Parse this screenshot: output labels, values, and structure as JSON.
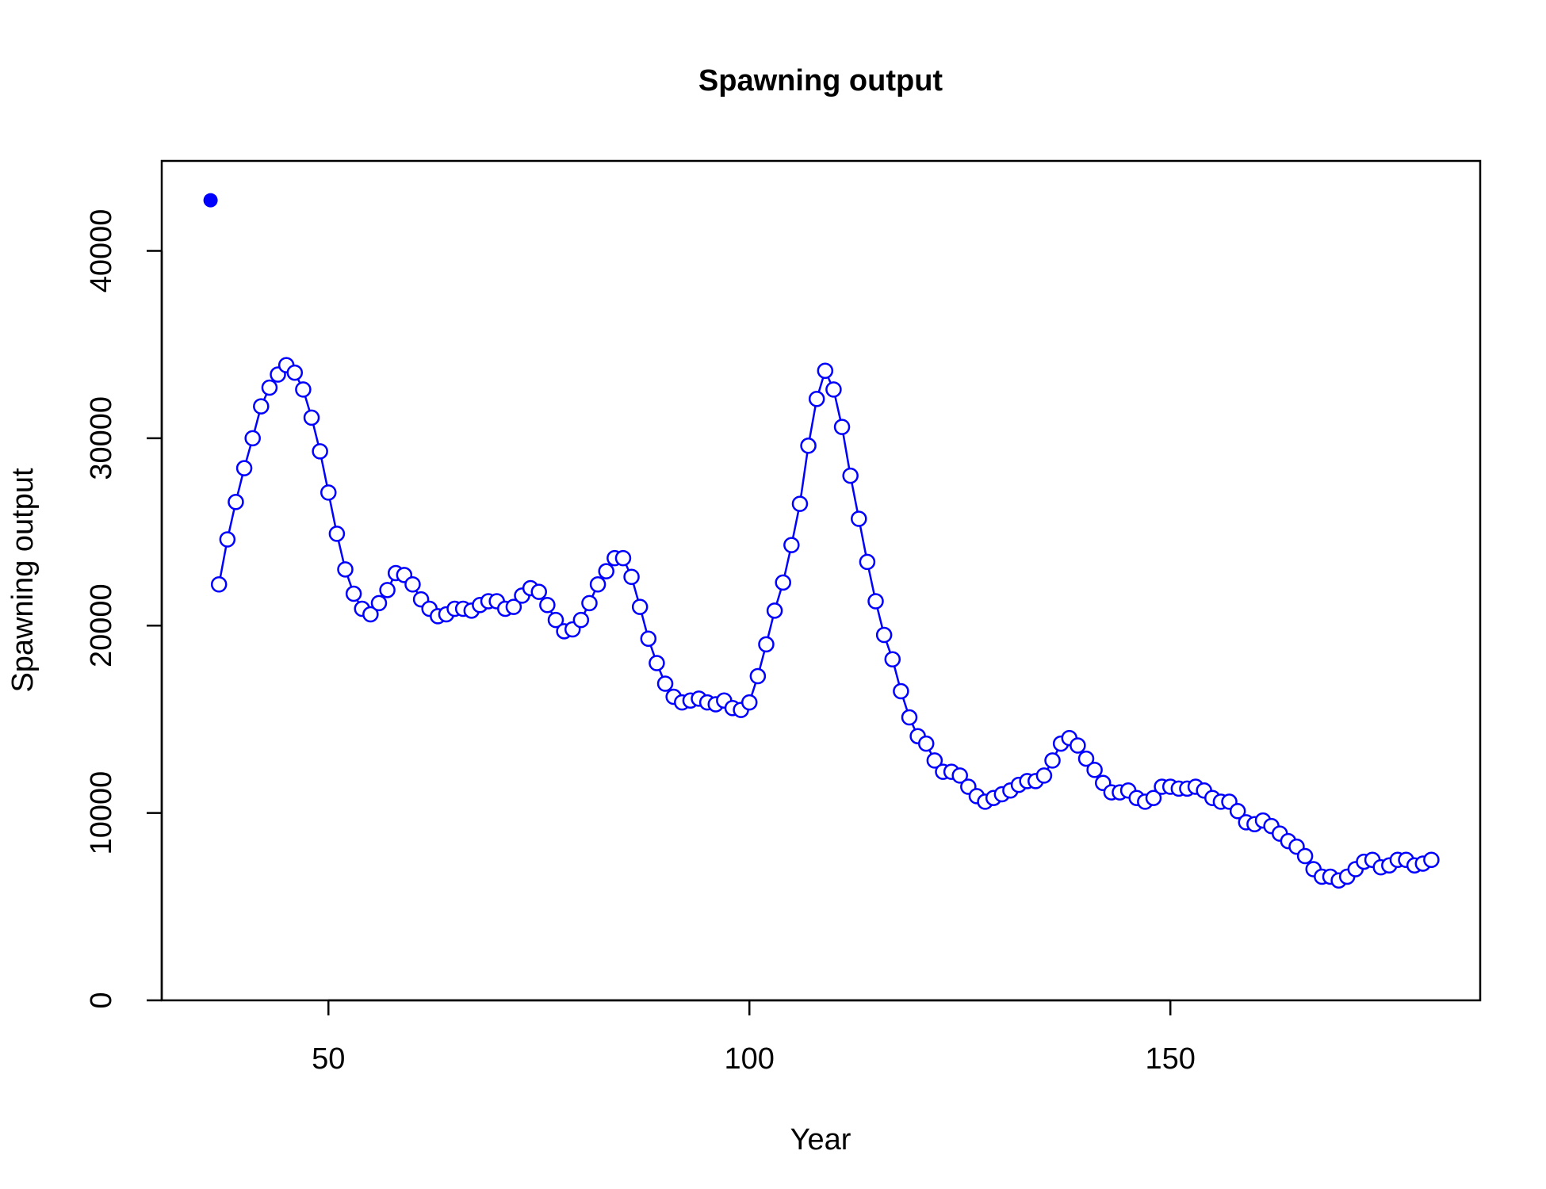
{
  "chart_data": {
    "type": "line",
    "title": "Spawning output",
    "x_label": "Year",
    "y_label": "Spawning output",
    "color": "#0000ff",
    "x": [
      37,
      38,
      39,
      40,
      41,
      42,
      43,
      44,
      45,
      46,
      47,
      48,
      49,
      50,
      51,
      52,
      53,
      54,
      55,
      56,
      57,
      58,
      59,
      60,
      61,
      62,
      63,
      64,
      65,
      66,
      67,
      68,
      69,
      70,
      71,
      72,
      73,
      74,
      75,
      76,
      77,
      78,
      79,
      80,
      81,
      82,
      83,
      84,
      85,
      86,
      87,
      88,
      89,
      90,
      91,
      92,
      93,
      94,
      95,
      96,
      97,
      98,
      99,
      100,
      101,
      102,
      103,
      104,
      105,
      106,
      107,
      108,
      109,
      110,
      111,
      112,
      113,
      114,
      115,
      116,
      117,
      118,
      119,
      120,
      121,
      122,
      123,
      124,
      125,
      126,
      127,
      128,
      129,
      130,
      131,
      132,
      133,
      134,
      135,
      136,
      137,
      138,
      139,
      140,
      141,
      142,
      143,
      144,
      145,
      146,
      147,
      148,
      149,
      150,
      151,
      152,
      153,
      154,
      155,
      156,
      157,
      158,
      159,
      160,
      161,
      162,
      163,
      164,
      165,
      166,
      167,
      168,
      169,
      170,
      171,
      172,
      173,
      174,
      175,
      176,
      177,
      178,
      179,
      180,
      181
    ],
    "values": [
      22200,
      24600,
      26600,
      28400,
      30000,
      31700,
      32700,
      33400,
      33900,
      33500,
      32600,
      31100,
      29300,
      27100,
      24900,
      23000,
      21700,
      20900,
      20600,
      21200,
      21900,
      22800,
      22700,
      22200,
      21400,
      20900,
      20500,
      20600,
      20900,
      20900,
      20800,
      21100,
      21300,
      21300,
      20900,
      21000,
      21600,
      22000,
      21800,
      21100,
      20300,
      19700,
      19800,
      20300,
      21200,
      22200,
      22900,
      23600,
      23600,
      22600,
      21000,
      19300,
      18000,
      16900,
      16200,
      15900,
      16000,
      16100,
      15900,
      15800,
      16000,
      15600,
      15500,
      15900,
      17300,
      19000,
      20800,
      22300,
      24300,
      26500,
      29600,
      32100,
      33600,
      32600,
      30600,
      28000,
      25700,
      23400,
      21300,
      19500,
      18200,
      16500,
      15100,
      14100,
      13700,
      12800,
      12200,
      12200,
      12000,
      11400,
      10900,
      10600,
      10800,
      11000,
      11200,
      11500,
      11700,
      11700,
      12000,
      12800,
      13700,
      14000,
      13600,
      12900,
      12300,
      11600,
      11100,
      11100,
      11200,
      10800,
      10600,
      10800,
      11400,
      11400,
      11300,
      11300,
      11400,
      11200,
      10800,
      10600,
      10600,
      10100,
      9500,
      9400,
      9600,
      9300,
      8900,
      8500,
      8200,
      7700,
      7000,
      6600,
      6600,
      6400,
      6600,
      7000,
      7400,
      7500,
      7100,
      7200,
      7500,
      7500,
      7200,
      7300,
      7500
    ],
    "start_point": {
      "x": 36,
      "value": 42700
    },
    "xlim": [
      30.2,
      186.8
    ],
    "ylim": [
      0,
      44800
    ],
    "xticks": [
      50,
      100,
      150
    ],
    "yticks": [
      0,
      10000,
      20000,
      30000,
      40000
    ]
  }
}
